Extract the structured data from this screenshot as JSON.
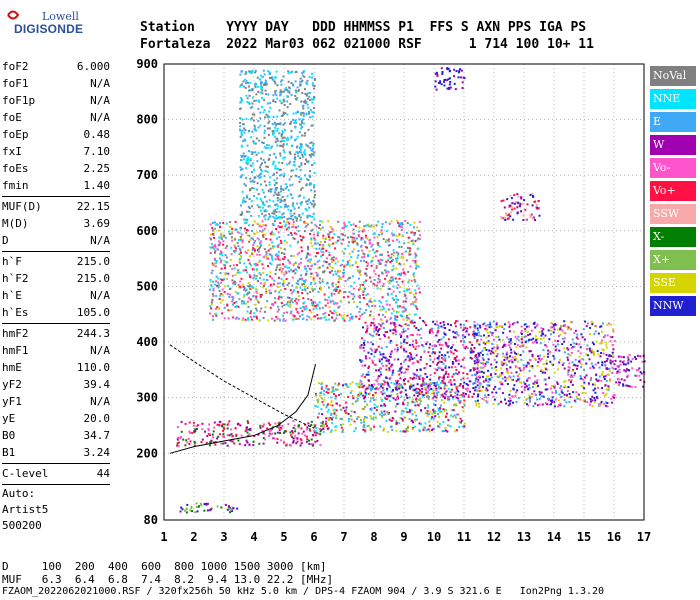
{
  "logo": {
    "line1": "Lowell",
    "line2": "DIGISONDE"
  },
  "header": {
    "line1": "Station    YYYY DAY   DDD HHMMSS P1  FFS S AXN PPS IGA PS",
    "line2": "Fortaleza  2022 Mar03 062 021000 RSF      1 714 100 10+ 11"
  },
  "params_group1": [
    {
      "label": "foF2",
      "value": "6.000"
    },
    {
      "label": "foF1",
      "value": "N/A"
    },
    {
      "label": "foF1p",
      "value": "N/A"
    },
    {
      "label": "foE",
      "value": "N/A"
    },
    {
      "label": "foEp",
      "value": "0.48"
    },
    {
      "label": "fxI",
      "value": "7.10"
    },
    {
      "label": "foEs",
      "value": "2.25"
    },
    {
      "label": "fmin",
      "value": "1.40"
    }
  ],
  "params_group2": [
    {
      "label": "MUF(D)",
      "value": "22.15"
    },
    {
      "label": "M(D)",
      "value": "3.69"
    },
    {
      "label": "D",
      "value": "N/A"
    }
  ],
  "params_group3": [
    {
      "label": "h`F",
      "value": "215.0"
    },
    {
      "label": "h`F2",
      "value": "215.0"
    },
    {
      "label": "h`E",
      "value": "N/A"
    },
    {
      "label": "h`Es",
      "value": "105.0"
    }
  ],
  "params_group4": [
    {
      "label": "hmF2",
      "value": "244.3"
    },
    {
      "label": "hmF1",
      "value": "N/A"
    },
    {
      "label": "hmE",
      "value": "110.0"
    },
    {
      "label": "yF2",
      "value": "39.4"
    },
    {
      "label": "yF1",
      "value": "N/A"
    },
    {
      "label": "yE",
      "value": "20.0"
    },
    {
      "label": "B0",
      "value": "34.7"
    },
    {
      "label": "B1",
      "value": "3.24"
    }
  ],
  "params_group5": [
    {
      "label": "C-level",
      "value": "44"
    }
  ],
  "auto": {
    "line1": "Auto:",
    "line2": "Artist5",
    "line3": "500200"
  },
  "legend": [
    {
      "label": "NoVal",
      "color": "#808080"
    },
    {
      "label": "NNE",
      "color": "#00e5ff"
    },
    {
      "label": "E",
      "color": "#3fa9f5"
    },
    {
      "label": "W",
      "color": "#a000b0"
    },
    {
      "label": "Vo-",
      "color": "#ff55cc"
    },
    {
      "label": "Vo+",
      "color": "#ff1144"
    },
    {
      "label": "SSW",
      "color": "#f7a9a9"
    },
    {
      "label": "X-",
      "color": "#008000"
    },
    {
      "label": "X+",
      "color": "#7fbf4f"
    },
    {
      "label": "SSE",
      "color": "#d4d400"
    },
    {
      "label": "NNW",
      "color": "#2020d0"
    }
  ],
  "bottom": {
    "line1": "D     100  200  400  600  800 1000 1500 3000 [km]",
    "line2": "MUF   6.3  6.4  6.8  7.4  8.2  9.4 13.0 22.2 [MHz]",
    "line3": "FZAOM_2022062021000.RSF / 320fx256h 50 kHz 5.0 km / DPS-4 FZAOM 904 / 3.9 S 321.6 E   Ion2Png 1.3.20"
  },
  "chart_data": {
    "type": "scatter",
    "xlim": [
      1,
      17
    ],
    "ylim": [
      80,
      900
    ],
    "xticks": [
      1,
      2,
      3,
      4,
      5,
      6,
      7,
      8,
      9,
      10,
      11,
      12,
      13,
      14,
      15,
      16,
      17
    ],
    "yticks": [
      80,
      200,
      300,
      400,
      500,
      600,
      700,
      800,
      900
    ],
    "grid": true,
    "clusters": [
      {
        "name": "F-trace low",
        "x": [
          1.4,
          6.3
        ],
        "y": [
          215,
          260
        ],
        "colors": [
          "#ff1144",
          "#ff55cc",
          "#a000b0",
          "#008000"
        ]
      },
      {
        "name": "F-trace main",
        "x": [
          6.0,
          11.0
        ],
        "y": [
          240,
          330
        ],
        "colors": [
          "#3fa9f5",
          "#00e5ff",
          "#ff1144",
          "#a000b0",
          "#d4d400",
          "#7fbf4f"
        ]
      },
      {
        "name": "F-spread",
        "x": [
          7.5,
          11.5
        ],
        "y": [
          300,
          440
        ],
        "colors": [
          "#ff1144",
          "#ff55cc",
          "#a000b0",
          "#3fa9f5",
          "#2020d0"
        ]
      },
      {
        "name": "high-freq spread",
        "x": [
          11.3,
          16.0
        ],
        "y": [
          285,
          440
        ],
        "colors": [
          "#2020d0",
          "#a000b0",
          "#3fa9f5",
          "#d4d400",
          "#ff55cc"
        ]
      },
      {
        "name": "far spread",
        "x": [
          16.0,
          17.0
        ],
        "y": [
          320,
          380
        ],
        "colors": [
          "#ff55cc",
          "#a000b0",
          "#2020d0"
        ]
      },
      {
        "name": "second hop",
        "x": [
          2.5,
          9.5
        ],
        "y": [
          440,
          620
        ],
        "colors": [
          "#808080",
          "#3fa9f5",
          "#00e5ff",
          "#d4d400",
          "#ff55cc",
          "#ff1144"
        ]
      },
      {
        "name": "scattered echoes",
        "x": [
          3.5,
          6.0
        ],
        "y": [
          620,
          890
        ],
        "colors": [
          "#3fa9f5",
          "#00e5ff",
          "#808080"
        ]
      },
      {
        "name": "top echoes",
        "x": [
          10.0,
          11.0
        ],
        "y": [
          855,
          895
        ],
        "colors": [
          "#2020d0",
          "#a000b0"
        ]
      },
      {
        "name": "mid echoes",
        "x": [
          12.2,
          13.5
        ],
        "y": [
          620,
          670
        ],
        "colors": [
          "#ff1144",
          "#a000b0",
          "#2020d0",
          "#f7a9a9"
        ]
      },
      {
        "name": "Es layer",
        "x": [
          1.4,
          3.6
        ],
        "y": [
          95,
          112
        ],
        "colors": [
          "#a000b0",
          "#2020d0",
          "#7fbf4f",
          "#008000"
        ]
      }
    ],
    "curves": [
      {
        "name": "profile",
        "color": "#000000",
        "x": [
          1.2,
          2.0,
          3.0,
          4.0,
          5.0,
          6.0
        ],
        "y": [
          395,
          365,
          330,
          300,
          270,
          245
        ]
      },
      {
        "name": "trace",
        "color": "#000000",
        "x": [
          1.2,
          2.0,
          3.0,
          4.0,
          4.8,
          5.4,
          5.8,
          6.05
        ],
        "y": [
          200,
          212,
          222,
          232,
          250,
          275,
          305,
          360
        ]
      }
    ]
  }
}
